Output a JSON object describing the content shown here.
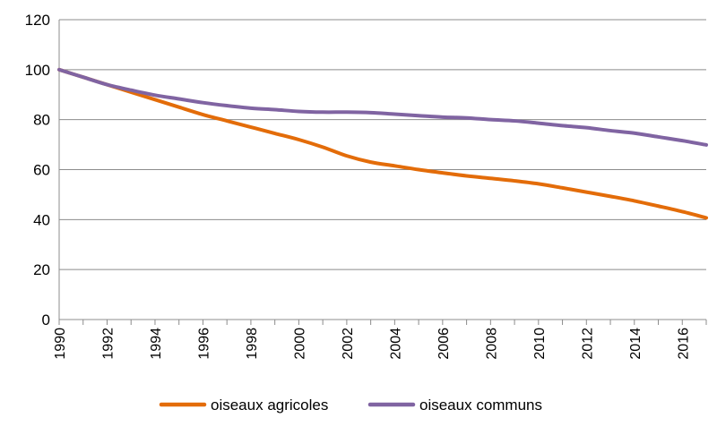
{
  "chart_data": {
    "type": "line",
    "title": "",
    "xlabel": "",
    "ylabel": "",
    "x": [
      1990,
      1991,
      1992,
      1993,
      1994,
      1995,
      1996,
      1997,
      1998,
      1999,
      2000,
      2001,
      2002,
      2003,
      2004,
      2005,
      2006,
      2007,
      2008,
      2009,
      2010,
      2011,
      2012,
      2013,
      2014,
      2015,
      2016,
      2017
    ],
    "xlim": [
      1990,
      2017
    ],
    "ylim": [
      0,
      120
    ],
    "yticks": [
      0,
      20,
      40,
      60,
      80,
      100,
      120
    ],
    "xtick_labels": [
      "1990",
      "1992",
      "1994",
      "1996",
      "1998",
      "2000",
      "2002",
      "2004",
      "2006",
      "2008",
      "2010",
      "2012",
      "2014",
      "2016"
    ],
    "grid": "horizontal",
    "legend_position": "bottom",
    "series": [
      {
        "name": "oiseaux agricoles",
        "color": "#E36C09",
        "values": [
          100,
          97,
          94,
          91,
          88,
          85,
          82,
          79.5,
          77,
          74.5,
          72,
          69,
          65.5,
          63,
          61.5,
          60,
          58.7,
          57.5,
          56.5,
          55.5,
          54.3,
          52.7,
          51,
          49.3,
          47.5,
          45.4,
          43.2,
          40.7
        ]
      },
      {
        "name": "oiseaux communs",
        "color": "#8064A2",
        "values": [
          100,
          97,
          94,
          91.8,
          89.8,
          88.3,
          86.8,
          85.6,
          84.6,
          84,
          83.3,
          83,
          83,
          82.8,
          82.2,
          81.6,
          81,
          80.7,
          80,
          79.5,
          78.6,
          77.6,
          76.8,
          75.6,
          74.6,
          73.1,
          71.6,
          69.9
        ]
      }
    ]
  }
}
